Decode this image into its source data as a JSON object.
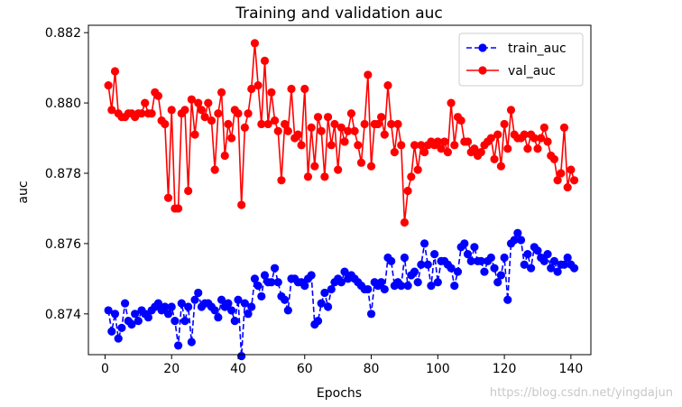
{
  "chart_data": {
    "type": "line",
    "title": "Training and validation auc",
    "xlabel": "Epochs",
    "ylabel": "auc",
    "xlim": [
      -5,
      146
    ],
    "ylim": [
      0.87284,
      0.88221
    ],
    "xticks": [
      0,
      20,
      40,
      60,
      80,
      100,
      120,
      140
    ],
    "yticks": [
      0.874,
      0.876,
      0.878,
      0.88,
      0.882
    ],
    "ytick_labels": [
      "0.874",
      "0.876",
      "0.878",
      "0.880",
      "0.882"
    ],
    "grid": false,
    "legend_position": "top-right",
    "colors": {
      "train": "#0000ff",
      "val": "#ff0000"
    },
    "series": [
      {
        "name": "train_auc",
        "style": "dashed-circle",
        "x": [
          1,
          2,
          3,
          4,
          5,
          6,
          7,
          8,
          9,
          10,
          11,
          12,
          13,
          14,
          15,
          16,
          17,
          18,
          19,
          20,
          21,
          22,
          23,
          24,
          25,
          26,
          27,
          28,
          29,
          30,
          31,
          32,
          33,
          34,
          35,
          36,
          37,
          38,
          39,
          40,
          41,
          42,
          43,
          44,
          45,
          46,
          47,
          48,
          49,
          50,
          51,
          52,
          53,
          54,
          55,
          56,
          57,
          58,
          59,
          60,
          61,
          62,
          63,
          64,
          65,
          66,
          67,
          68,
          69,
          70,
          71,
          72,
          73,
          74,
          75,
          76,
          77,
          78,
          79,
          80,
          81,
          82,
          83,
          84,
          85,
          86,
          87,
          88,
          89,
          90,
          91,
          92,
          93,
          94,
          95,
          96,
          97,
          98,
          99,
          100,
          101,
          102,
          103,
          104,
          105,
          106,
          107,
          108,
          109,
          110,
          111,
          112,
          113,
          114,
          115,
          116,
          117,
          118,
          119,
          120,
          121,
          122,
          123,
          124,
          125,
          126,
          127,
          128,
          129,
          130,
          131,
          132,
          133,
          134,
          135,
          136,
          137,
          138,
          139,
          140,
          141
        ],
        "values": [
          0.8741,
          0.8735,
          0.874,
          0.8733,
          0.8736,
          0.8743,
          0.8738,
          0.8737,
          0.874,
          0.8738,
          0.8741,
          0.874,
          0.8739,
          0.8741,
          0.8742,
          0.8743,
          0.8741,
          0.8742,
          0.874,
          0.8742,
          0.8738,
          0.8731,
          0.8743,
          0.8738,
          0.8742,
          0.8732,
          0.8744,
          0.8746,
          0.8742,
          0.8743,
          0.8743,
          0.8742,
          0.8741,
          0.8739,
          0.8744,
          0.8742,
          0.8743,
          0.8741,
          0.8738,
          0.8744,
          0.8728,
          0.8743,
          0.874,
          0.8742,
          0.875,
          0.8748,
          0.8745,
          0.8751,
          0.8749,
          0.8749,
          0.8753,
          0.8749,
          0.8745,
          0.8744,
          0.8741,
          0.875,
          0.875,
          0.8749,
          0.8749,
          0.8748,
          0.875,
          0.8751,
          0.8737,
          0.8738,
          0.8743,
          0.8746,
          0.8742,
          0.8747,
          0.8749,
          0.875,
          0.8749,
          0.8752,
          0.875,
          0.8751,
          0.875,
          0.8749,
          0.8748,
          0.8747,
          0.8747,
          0.874,
          0.8749,
          0.8748,
          0.8749,
          0.8747,
          0.8756,
          0.8755,
          0.8748,
          0.8749,
          0.8748,
          0.8756,
          0.8748,
          0.8751,
          0.8752,
          0.8749,
          0.8754,
          0.876,
          0.8754,
          0.8748,
          0.8757,
          0.8749,
          0.8755,
          0.8755,
          0.8754,
          0.8753,
          0.8748,
          0.8752,
          0.8759,
          0.876,
          0.8757,
          0.8755,
          0.8759,
          0.8755,
          0.8755,
          0.8752,
          0.8755,
          0.8756,
          0.8753,
          0.8749,
          0.8751,
          0.8756,
          0.8744,
          0.876,
          0.8761,
          0.8763,
          0.8761,
          0.8754,
          0.8757,
          0.8753,
          0.8759,
          0.8758,
          0.8756,
          0.8755,
          0.8757,
          0.8753,
          0.8755,
          0.8752,
          0.8754,
          0.8754,
          0.8756,
          0.8754,
          0.8753
        ]
      },
      {
        "name": "val_auc",
        "style": "solid-circle",
        "x": [
          1,
          2,
          3,
          4,
          5,
          6,
          7,
          8,
          9,
          10,
          11,
          12,
          13,
          14,
          15,
          16,
          17,
          18,
          19,
          20,
          21,
          22,
          23,
          24,
          25,
          26,
          27,
          28,
          29,
          30,
          31,
          32,
          33,
          34,
          35,
          36,
          37,
          38,
          39,
          40,
          41,
          42,
          43,
          44,
          45,
          46,
          47,
          48,
          49,
          50,
          51,
          52,
          53,
          54,
          55,
          56,
          57,
          58,
          59,
          60,
          61,
          62,
          63,
          64,
          65,
          66,
          67,
          68,
          69,
          70,
          71,
          72,
          73,
          74,
          75,
          76,
          77,
          78,
          79,
          80,
          81,
          82,
          83,
          84,
          85,
          86,
          87,
          88,
          89,
          90,
          91,
          92,
          93,
          94,
          95,
          96,
          97,
          98,
          99,
          100,
          101,
          102,
          103,
          104,
          105,
          106,
          107,
          108,
          109,
          110,
          111,
          112,
          113,
          114,
          115,
          116,
          117,
          118,
          119,
          120,
          121,
          122,
          123,
          124,
          125,
          126,
          127,
          128,
          129,
          130,
          131,
          132,
          133,
          134,
          135,
          136,
          137,
          138,
          139,
          140,
          141
        ],
        "values": [
          0.8805,
          0.8798,
          0.8809,
          0.8797,
          0.8796,
          0.8796,
          0.8797,
          0.8797,
          0.8796,
          0.8797,
          0.8797,
          0.88,
          0.8797,
          0.8797,
          0.8803,
          0.8802,
          0.8795,
          0.8794,
          0.8773,
          0.8798,
          0.877,
          0.877,
          0.8797,
          0.8798,
          0.8775,
          0.8801,
          0.8791,
          0.88,
          0.8798,
          0.8796,
          0.88,
          0.8795,
          0.8781,
          0.8797,
          0.8803,
          0.8785,
          0.8794,
          0.879,
          0.8798,
          0.8797,
          0.8771,
          0.8793,
          0.8797,
          0.8804,
          0.8817,
          0.8805,
          0.8794,
          0.8812,
          0.8794,
          0.8803,
          0.8795,
          0.8792,
          0.8778,
          0.8794,
          0.8792,
          0.8804,
          0.879,
          0.8791,
          0.8788,
          0.8804,
          0.8779,
          0.8793,
          0.8782,
          0.8796,
          0.8792,
          0.8779,
          0.8796,
          0.8788,
          0.8794,
          0.8781,
          0.8793,
          0.8789,
          0.8792,
          0.8797,
          0.8792,
          0.8788,
          0.8783,
          0.8794,
          0.8808,
          0.8782,
          0.8794,
          0.8794,
          0.8796,
          0.8791,
          0.8805,
          0.8794,
          0.8786,
          0.8794,
          0.8788,
          0.8766,
          0.8775,
          0.8779,
          0.8788,
          0.8781,
          0.8788,
          0.8786,
          0.8788,
          0.8789,
          0.8788,
          0.8789,
          0.8787,
          0.8789,
          0.8786,
          0.88,
          0.8788,
          0.8796,
          0.8795,
          0.8789,
          0.8789,
          0.8786,
          0.8787,
          0.8785,
          0.8786,
          0.8788,
          0.8789,
          0.879,
          0.8784,
          0.8791,
          0.8782,
          0.8794,
          0.8787,
          0.8798,
          0.8791,
          0.879,
          0.879,
          0.8791,
          0.8787,
          0.8791,
          0.879,
          0.8787,
          0.879,
          0.8793,
          0.8789,
          0.8785,
          0.8784,
          0.8778,
          0.878,
          0.8793,
          0.8776,
          0.8781,
          0.8778
        ]
      }
    ]
  },
  "watermark": "https://blog.csdn.net/yingdajun"
}
